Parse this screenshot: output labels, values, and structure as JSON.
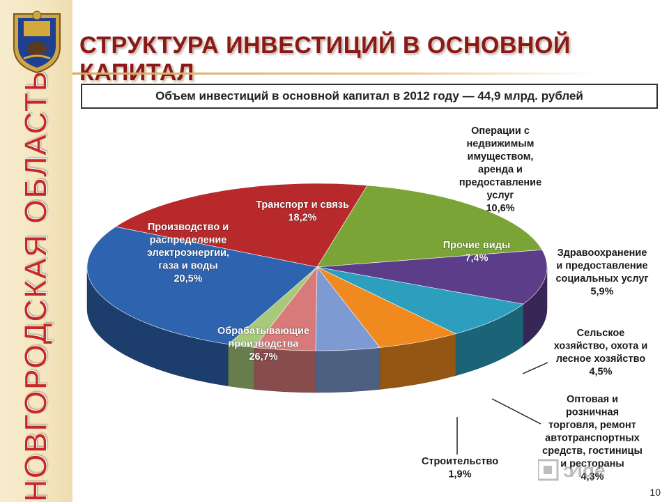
{
  "slide": {
    "title": "СТРУКТУРА ИНВЕСТИЦИЙ В ОСНОВНОЙ КАПИТАЛ",
    "sidebar_text": "НОВГОРОДСКАЯ ОБЛАСТЬ",
    "subtitle": "Объем инвестиций в основной капитал в 2012 году — 44,9 млрд. рублей",
    "page_number": "10"
  },
  "colors": {
    "title": "#8a1a1a",
    "sidebar_text": "#c62828"
  },
  "chart_data": {
    "type": "pie",
    "title": "",
    "series": [
      {
        "name": "Производство и распределение электроэнергии, газа и воды",
        "value": 20.5,
        "label_lines": [
          "Производство и",
          "распределение",
          "электроэнергии,",
          "газа и воды",
          "20,5%"
        ],
        "color": "#b8292b"
      },
      {
        "name": "Транспорт и связь",
        "value": 18.2,
        "label_lines": [
          "Транспорт и связь",
          "18,2%"
        ],
        "color": "#7aa536"
      },
      {
        "name": "Операции с недвижимым имуществом, аренда и предоставление услуг",
        "value": 10.6,
        "label_lines": [
          "Операции с",
          "недвижимым",
          "имуществом,",
          "аренда и",
          "предоставление",
          "услуг",
          "10,6%"
        ],
        "color": "#5b3d8a"
      },
      {
        "name": "Прочие виды",
        "value": 7.4,
        "label_lines": [
          "Прочие виды",
          "7,4%"
        ],
        "color": "#2c9fbf"
      },
      {
        "name": "Здравоохранение и предоставление социальных услуг",
        "value": 5.9,
        "label_lines": [
          "Здравоохранение",
          "и предоставление",
          "социальных услуг",
          "5,9%"
        ],
        "color": "#f08a1e"
      },
      {
        "name": "Сельское хозяйство, охота и лесное хозяйство",
        "value": 4.5,
        "label_lines": [
          "Сельское",
          "хозяйство, охота и",
          "лесное хозяйство",
          "4,5%"
        ],
        "color": "#7d9bd2"
      },
      {
        "name": "Оптовая и розничная торговля, ремонт автотранспортных средств, гостиницы и рестораны",
        "value": 4.3,
        "label_lines": [
          "Оптовая и",
          "розничная",
          "торговля, ремонт",
          "автотранспортных",
          "средств, гостиницы",
          "и рестораны",
          "4,3%"
        ],
        "color": "#d97a7a"
      },
      {
        "name": "Строительство",
        "value": 1.9,
        "label_lines": [
          "Строительство",
          "1,9%"
        ],
        "color": "#a8c97a"
      },
      {
        "name": "Обрабатывающие производства",
        "value": 26.7,
        "label_lines": [
          "Обрабатывающие",
          "производства",
          "26,7%"
        ],
        "color": "#2e63b0"
      }
    ]
  }
}
